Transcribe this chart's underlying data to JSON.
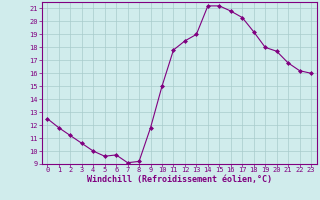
{
  "hours": [
    0,
    1,
    2,
    3,
    4,
    5,
    6,
    7,
    8,
    9,
    10,
    11,
    12,
    13,
    14,
    15,
    16,
    17,
    18,
    19,
    20,
    21,
    22,
    23
  ],
  "values": [
    12.5,
    11.8,
    11.2,
    10.6,
    10.0,
    9.6,
    9.7,
    9.1,
    9.2,
    11.8,
    15.0,
    17.8,
    18.5,
    19.0,
    21.2,
    21.2,
    20.8,
    20.3,
    19.2,
    18.0,
    17.7,
    16.8,
    16.2,
    16.0
  ],
  "line_color": "#800080",
  "marker": "D",
  "marker_size": 2,
  "bg_color": "#d0ecec",
  "grid_color": "#a8cccc",
  "ylabel_ticks": [
    9,
    10,
    11,
    12,
    13,
    14,
    15,
    16,
    17,
    18,
    19,
    20,
    21
  ],
  "ylim": [
    9,
    21.5
  ],
  "xlim": [
    -0.5,
    23.5
  ],
  "xlabel": "Windchill (Refroidissement éolien,°C)",
  "tick_color": "#800080",
  "label_color": "#800080",
  "spine_color": "#800080",
  "tick_fontsize": 5.0,
  "xlabel_fontsize": 6.0,
  "linewidth": 0.8
}
